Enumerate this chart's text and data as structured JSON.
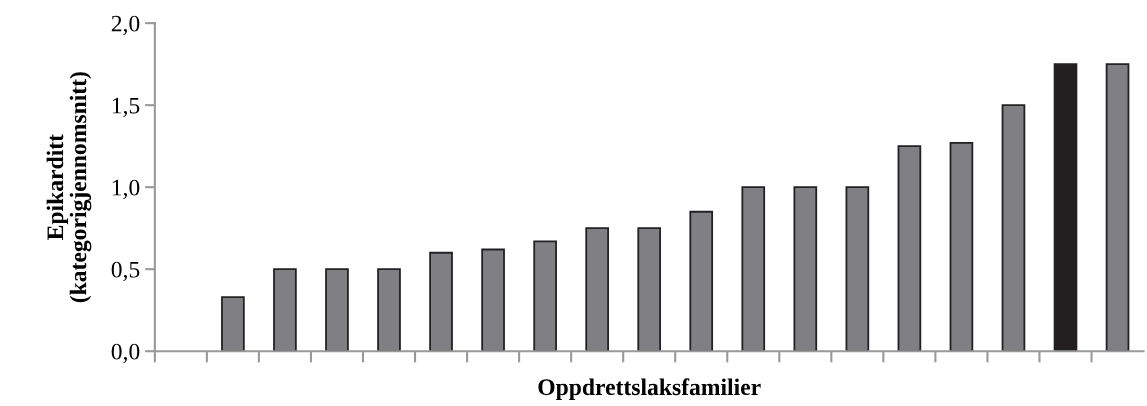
{
  "chart_data": {
    "type": "bar",
    "xlabel": "Oppdrettslaksfamilier",
    "ylabel": "Epikarditt\n(kategorigjennomsnitt)",
    "categories": [
      null,
      null,
      null,
      null,
      null,
      null,
      null,
      null,
      null,
      null,
      null,
      null,
      null,
      null,
      null,
      null,
      null,
      null,
      null
    ],
    "values": [
      null,
      0.33,
      0.5,
      0.5,
      0.5,
      0.6,
      0.62,
      0.67,
      0.75,
      0.75,
      0.85,
      1.0,
      1.0,
      1.0,
      1.25,
      1.27,
      1.5,
      1.75,
      1.75
    ],
    "colors": [
      "#7f7f84",
      "#7f7f84",
      "#7f7f84",
      "#7f7f84",
      "#7f7f84",
      "#7f7f84",
      "#7f7f84",
      "#7f7f84",
      "#7f7f84",
      "#7f7f84",
      "#7f7f84",
      "#7f7f84",
      "#7f7f84",
      "#7f7f84",
      "#7f7f84",
      "#7f7f84",
      "#7f7f84",
      "#231f20",
      "#7f7f84"
    ],
    "ylim": [
      0,
      2.0
    ],
    "yticks": [
      {
        "value": 0,
        "label": "0,0"
      },
      {
        "value": 0.5,
        "label": "0,5"
      },
      {
        "value": 1.0,
        "label": "1,0"
      },
      {
        "value": 1.5,
        "label": "1,5"
      },
      {
        "value": 2.0,
        "label": "2,0"
      }
    ],
    "tick_labels": "y",
    "grid": false,
    "legend": false
  }
}
